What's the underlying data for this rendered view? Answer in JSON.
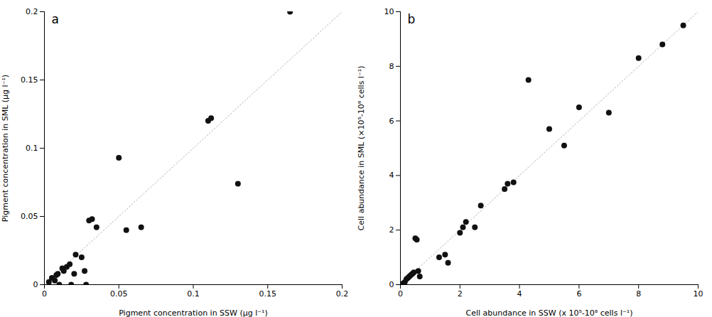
{
  "chart_data": [
    {
      "type": "scatter",
      "x": [
        0.003,
        0.005,
        0.007,
        0.008,
        0.009,
        0.01,
        0.012,
        0.013,
        0.015,
        0.017,
        0.018,
        0.02,
        0.021,
        0.025,
        0.027,
        0.028,
        0.03,
        0.032,
        0.035,
        0.05,
        0.055,
        0.065,
        0.11,
        0.112,
        0.13,
        0.165
      ],
      "values": [
        0.002,
        0.005,
        0.003,
        0.007,
        0.008,
        0.0,
        0.012,
        0.01,
        0.013,
        0.015,
        0.0,
        0.008,
        0.022,
        0.02,
        0.01,
        0.0,
        0.047,
        0.048,
        0.042,
        0.093,
        0.04,
        0.042,
        0.12,
        0.122,
        0.074,
        0.2
      ],
      "color": "#111111",
      "xlim": [
        0,
        0.2
      ],
      "ylim": [
        0,
        0.2
      ],
      "xticks": [
        0,
        0.05,
        0.1,
        0.15,
        0.2
      ],
      "yticks": [
        0,
        0.05,
        0.1,
        0.15,
        0.2
      ],
      "x_label": "Pigment concentration in SSW (μg l⁻¹)",
      "y_label": "Pigment concentration in SML (μg l⁻¹)",
      "annotations": [
        "a"
      ]
    },
    {
      "type": "scatter",
      "x": [
        0.05,
        0.1,
        0.15,
        0.2,
        0.25,
        0.3,
        0.35,
        0.4,
        0.45,
        0.5,
        0.55,
        0.6,
        0.65,
        1.3,
        1.5,
        1.6,
        2.0,
        2.1,
        2.2,
        2.5,
        2.7,
        3.5,
        3.6,
        3.8,
        4.3,
        5.0,
        5.5,
        6.0,
        7.0,
        8.0,
        8.8,
        9.5
      ],
      "values": [
        0.0,
        0.05,
        0.1,
        0.2,
        0.25,
        0.3,
        0.35,
        0.4,
        0.45,
        1.7,
        1.65,
        0.5,
        0.3,
        1.0,
        1.1,
        0.8,
        1.9,
        2.1,
        2.3,
        2.1,
        2.9,
        3.5,
        3.7,
        3.75,
        7.5,
        5.7,
        5.1,
        6.5,
        6.3,
        8.3,
        8.8,
        9.5
      ],
      "color": "#111111",
      "xlim": [
        0,
        10
      ],
      "ylim": [
        0,
        10
      ],
      "xticks": [
        0,
        2,
        4,
        6,
        8,
        10
      ],
      "yticks": [
        0,
        2,
        4,
        6,
        8,
        10
      ],
      "x_label": "Cell abundance in SSW (x 10⁵-10⁸ cells l⁻¹)",
      "y_label": "Cell abundance in SML (×10⁵-10⁸ cells l⁻¹)",
      "annotations": [
        "b"
      ]
    }
  ]
}
